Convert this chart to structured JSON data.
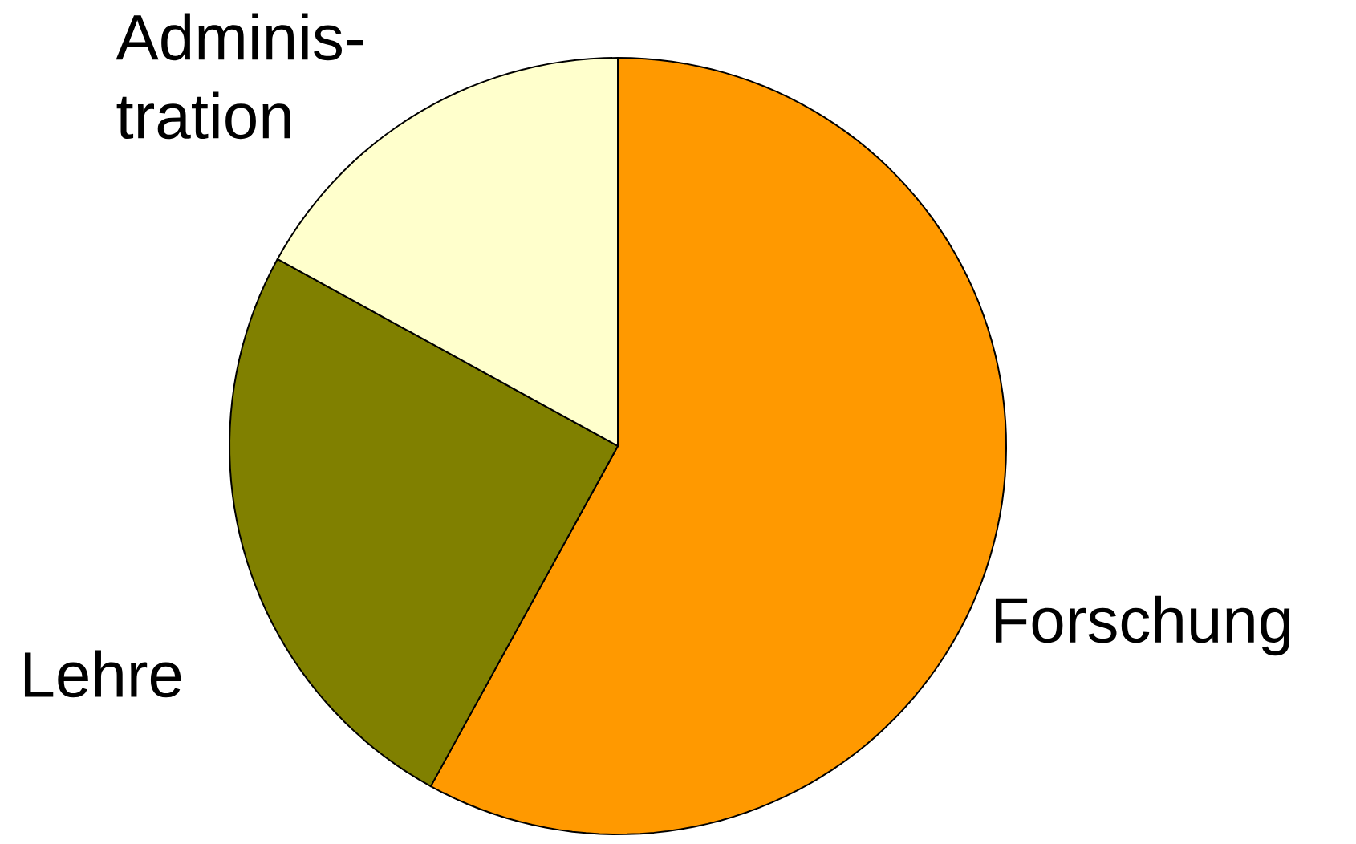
{
  "chart_data": {
    "type": "pie",
    "categories": [
      "Forschung",
      "Lehre",
      "Adminis-tration"
    ],
    "values": [
      58,
      25,
      17
    ],
    "colors": [
      "#ff9900",
      "#808000",
      "#ffffcc"
    ]
  }
}
